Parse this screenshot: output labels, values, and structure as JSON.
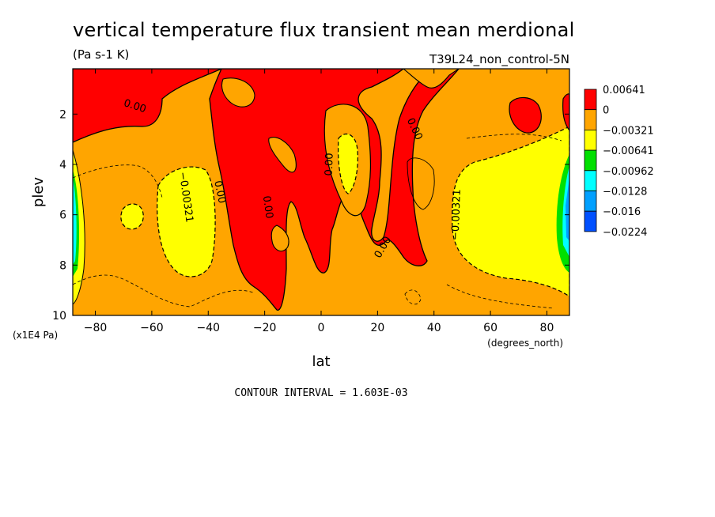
{
  "chart_data": {
    "type": "heatmap",
    "title": "vertical temperature flux transient mean merdional",
    "subtitle_left": "(Pa s-1 K)",
    "subtitle_right": "T39L24_non_control-5N",
    "xlabel": "lat",
    "xunits": "(degrees_north)",
    "ylabel": "plev",
    "yunits": "(x1E4 Pa)",
    "xlim": [
      -88,
      88
    ],
    "ylim": [
      10,
      0.2
    ],
    "x_ticks": [
      {
        "value": -80,
        "label": "-80"
      },
      {
        "value": -60,
        "label": "-60"
      },
      {
        "value": -40,
        "label": "-40"
      },
      {
        "value": -20,
        "label": "-20"
      },
      {
        "value": 0,
        "label": "0"
      },
      {
        "value": 20,
        "label": "20"
      },
      {
        "value": 40,
        "label": "40"
      },
      {
        "value": 60,
        "label": "60"
      },
      {
        "value": 80,
        "label": "80"
      }
    ],
    "y_ticks": [
      {
        "value": 2,
        "label": "2"
      },
      {
        "value": 4,
        "label": "4"
      },
      {
        "value": 6,
        "label": "6"
      },
      {
        "value": 8,
        "label": "8"
      },
      {
        "value": 10,
        "label": "10"
      }
    ],
    "colorbar": {
      "labels": [
        "0.00641",
        "0",
        "-0.00321",
        "-0.00641",
        "-0.00962",
        "-0.0128",
        "-0.016",
        "-0.0224"
      ],
      "colors": [
        "#ff0000",
        "#ffa500",
        "#ffff00",
        "#00e000",
        "#00ffff",
        "#00a0ff",
        "#0050ff"
      ]
    },
    "contour_labels": [
      {
        "text": "0.00",
        "lat": -66,
        "plev": 1.7,
        "rot": 18
      },
      {
        "text": "0.00",
        "lat": -36,
        "plev": 5.1,
        "rot": 78
      },
      {
        "text": "-0.00321",
        "lat": -48,
        "plev": 5.3,
        "rot": 82
      },
      {
        "text": "0.00",
        "lat": -19,
        "plev": 5.7,
        "rot": 82
      },
      {
        "text": "0.00",
        "lat": 3,
        "plev": 4.0,
        "rot": -88
      },
      {
        "text": "0.00",
        "lat": 22,
        "plev": 7.3,
        "rot": -60
      },
      {
        "text": "0.00",
        "lat": 33,
        "plev": 2.6,
        "rot": 65
      },
      {
        "text": "-0.00321",
        "lat": 48,
        "plev": 6.0,
        "rot": -88
      }
    ],
    "footnote": "CONTOUR INTERVAL = 1.603E-03"
  }
}
